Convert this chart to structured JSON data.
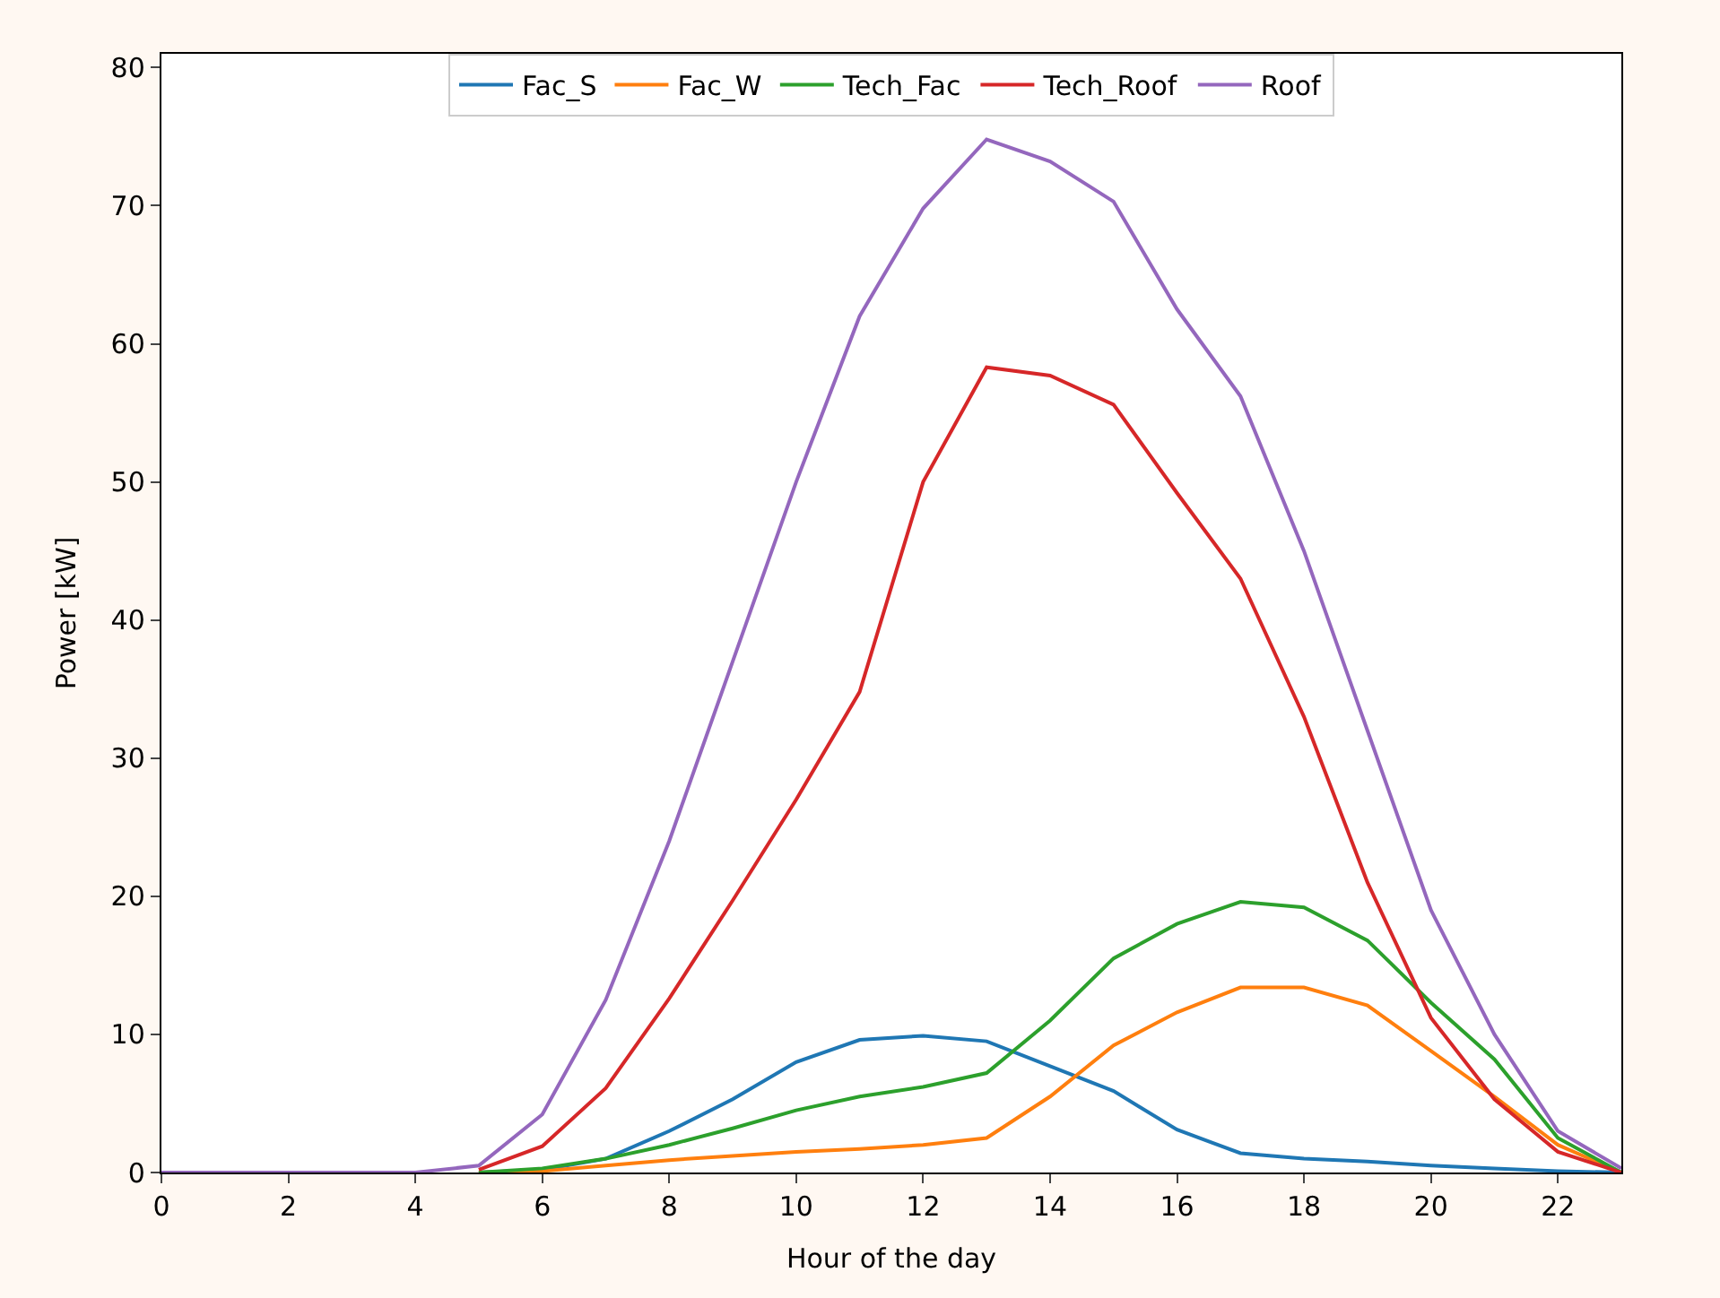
{
  "chart_data": {
    "type": "line",
    "xlabel": "Hour of the day",
    "ylabel": "Power [kW]",
    "x": [
      0,
      1,
      2,
      3,
      4,
      5,
      6,
      7,
      8,
      9,
      10,
      11,
      12,
      13,
      14,
      15,
      16,
      17,
      18,
      19,
      20,
      21,
      22,
      23
    ],
    "xlim": [
      0,
      23
    ],
    "xticks": [
      0,
      2,
      4,
      6,
      8,
      10,
      12,
      14,
      16,
      18,
      20,
      22
    ],
    "ylim": [
      0,
      81
    ],
    "yticks": [
      0,
      10,
      20,
      30,
      40,
      50,
      60,
      70,
      80
    ],
    "legend": "top",
    "marker": "none",
    "line_style": "solid",
    "series": [
      {
        "name": "Fac_S",
        "color": "#1f77b4",
        "values": [
          null,
          null,
          null,
          null,
          null,
          0,
          0.2,
          1,
          3,
          5.3,
          8,
          9.6,
          9.9,
          9.5,
          7.7,
          5.9,
          3.1,
          1.4,
          1,
          0.8,
          0.5,
          0.3,
          0.1,
          0
        ]
      },
      {
        "name": "Fac_W",
        "color": "#ff7f0e",
        "values": [
          null,
          null,
          null,
          null,
          null,
          0,
          0.1,
          0.5,
          0.9,
          1.2,
          1.5,
          1.7,
          2,
          2.5,
          5.5,
          9.2,
          11.6,
          13.4,
          13.4,
          12.1,
          8.8,
          5.5,
          2,
          0
        ]
      },
      {
        "name": "Tech_Fac",
        "color": "#2ca02c",
        "values": [
          null,
          null,
          null,
          null,
          null,
          0,
          0.3,
          1,
          2,
          3.2,
          4.5,
          5.5,
          6.2,
          7.2,
          11,
          15.5,
          18,
          19.6,
          19.2,
          16.8,
          12.3,
          8.2,
          2.5,
          0
        ]
      },
      {
        "name": "Tech_Roof",
        "color": "#d62728",
        "values": [
          null,
          null,
          null,
          null,
          null,
          0.2,
          1.9,
          6.1,
          12.6,
          19.7,
          27,
          34.8,
          50,
          58.3,
          57.7,
          55.6,
          49.2,
          43,
          33,
          21,
          11.2,
          5.3,
          1.5,
          0
        ]
      },
      {
        "name": "Roof",
        "color": "#9467bd",
        "values": [
          0,
          0,
          0,
          0,
          0,
          0.5,
          4.2,
          12.5,
          24,
          37,
          50,
          62,
          69.8,
          74.8,
          73.2,
          70.3,
          62.5,
          56.2,
          45,
          32,
          19,
          10,
          3,
          0.3
        ]
      }
    ]
  }
}
